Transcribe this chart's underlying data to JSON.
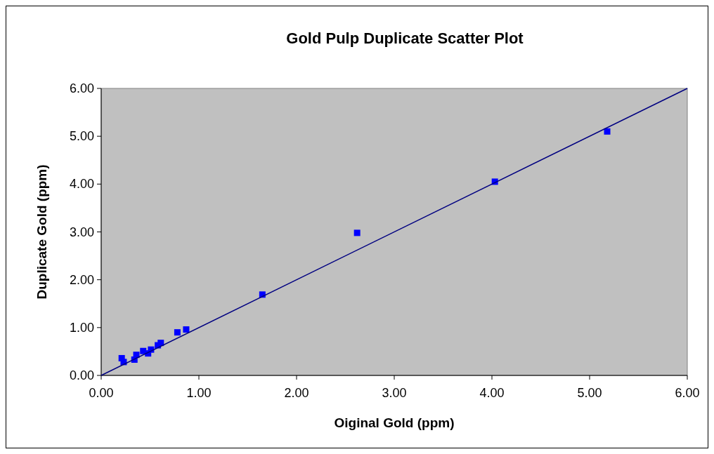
{
  "chart_data": {
    "type": "scatter",
    "title": "Gold Pulp Duplicate Scatter Plot",
    "xlabel": "Oiginal Gold (ppm)",
    "ylabel": "Duplicate Gold (ppm)",
    "xlim": [
      0,
      6
    ],
    "ylim": [
      0,
      6
    ],
    "xticks": [
      {
        "value": 0,
        "label": "0.00"
      },
      {
        "value": 1,
        "label": "1.00"
      },
      {
        "value": 2,
        "label": "2.00"
      },
      {
        "value": 3,
        "label": "3.00"
      },
      {
        "value": 4,
        "label": "4.00"
      },
      {
        "value": 5,
        "label": "5.00"
      },
      {
        "value": 6,
        "label": "6.00"
      }
    ],
    "yticks": [
      {
        "value": 0,
        "label": "0.00"
      },
      {
        "value": 1,
        "label": "1.00"
      },
      {
        "value": 2,
        "label": "2.00"
      },
      {
        "value": 3,
        "label": "3.00"
      },
      {
        "value": 4,
        "label": "4.00"
      },
      {
        "value": 5,
        "label": "5.00"
      },
      {
        "value": 6,
        "label": "6.00"
      }
    ],
    "grid": false,
    "marker": "square",
    "series": [
      {
        "color": "#0000ff",
        "x": [
          0.21,
          0.23,
          0.34,
          0.36,
          0.43,
          0.48,
          0.51,
          0.58,
          0.61,
          0.78,
          0.87,
          1.65,
          2.62,
          4.03,
          5.18
        ],
        "values": [
          0.36,
          0.28,
          0.33,
          0.43,
          0.51,
          0.46,
          0.54,
          0.63,
          0.68,
          0.9,
          0.96,
          1.69,
          2.98,
          4.05,
          5.1
        ]
      },
      {
        "type": "line",
        "color": "#000080",
        "x": [
          0,
          6
        ],
        "values": [
          0,
          6
        ],
        "marker": "none",
        "line_style": "solid"
      }
    ]
  }
}
